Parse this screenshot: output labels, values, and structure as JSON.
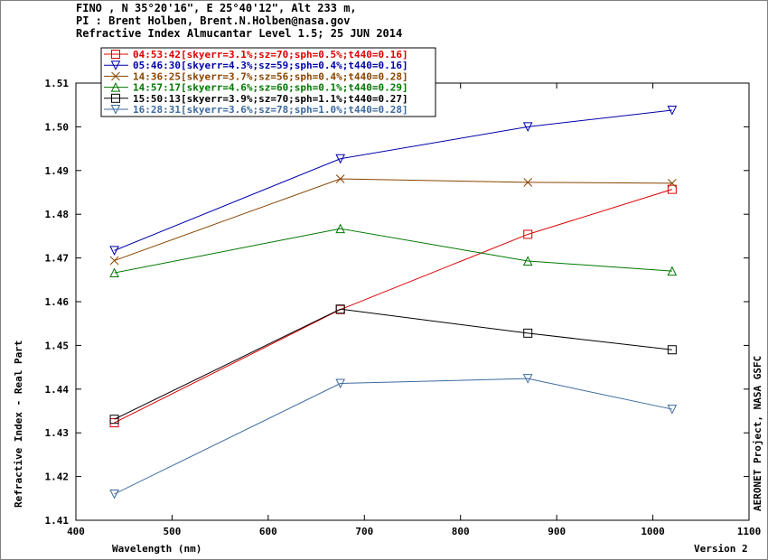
{
  "header": {
    "line1": "FINO , N 35°20'16\", E 25°40'12\", Alt 233 m,",
    "line2": "PI : Brent Holben, Brent.N.Holben@nasa.gov",
    "line3": "Refractive Index Almucantar Level 1.5; 25 JUN 2014"
  },
  "right_label": "AERONET Project, NASA GSFC",
  "version_label": "Version 2",
  "chart_data": {
    "type": "line",
    "title": "Refractive Index Almucantar Level 1.5; 25 JUN 2014",
    "xlabel": "Wavelength (nm)",
    "ylabel": "Refractive Index - Real Part",
    "xlim": [
      400,
      1100
    ],
    "ylim": [
      1.41,
      1.51
    ],
    "xticks": [
      400,
      500,
      600,
      700,
      800,
      900,
      1000,
      1100
    ],
    "yticks": [
      1.41,
      1.42,
      1.43,
      1.44,
      1.45,
      1.46,
      1.47,
      1.48,
      1.49,
      1.5,
      1.51
    ],
    "ytick_labels": [
      "1.41",
      "1.42",
      "1.43",
      "1.44",
      "1.45",
      "1.46",
      "1.47",
      "1.48",
      "1.49",
      "1.50",
      "1.51"
    ],
    "grid": false,
    "legend_position": "top-left",
    "x": [
      440,
      675,
      870,
      1020
    ],
    "series": [
      {
        "name": "04:53:42[skyerr=3.1%;sz=70;sph=0.5%;t440=0.16]",
        "color": "#dd0000",
        "marker": "square",
        "values": [
          1.4323,
          1.4582,
          1.4754,
          1.4857
        ]
      },
      {
        "name": "05:46:30[skyerr=4.3%;sz=59;sph=0.4%;t440=0.16]",
        "color": "#0000aa",
        "marker": "triangle-down",
        "values": [
          1.4717,
          1.4927,
          1.5,
          1.5038
        ]
      },
      {
        "name": "14:36:25[skyerr=3.7%;sz=56;sph=0.4%;t440=0.28]",
        "color": "#884400",
        "marker": "x",
        "values": [
          1.4694,
          1.4881,
          1.4873,
          1.4871
        ]
      },
      {
        "name": "14:57:17[skyerr=4.6%;sz=60;sph=0.1%;t440=0.29]",
        "color": "#007700",
        "marker": "triangle-up",
        "values": [
          1.4666,
          1.4767,
          1.4693,
          1.467
        ]
      },
      {
        "name": "15:50:13[skyerr=3.9%;sz=70;sph=1.1%;t440=0.27]",
        "color": "#000000",
        "marker": "square",
        "values": [
          1.4331,
          1.4583,
          1.4528,
          1.449
        ]
      },
      {
        "name": "16:28:31[skyerr=3.6%;sz=78;sph=1.0%;t440=0.28]",
        "color": "#3d6a9e",
        "marker": "triangle-down",
        "values": [
          1.416,
          1.4413,
          1.4424,
          1.4354
        ]
      }
    ]
  }
}
